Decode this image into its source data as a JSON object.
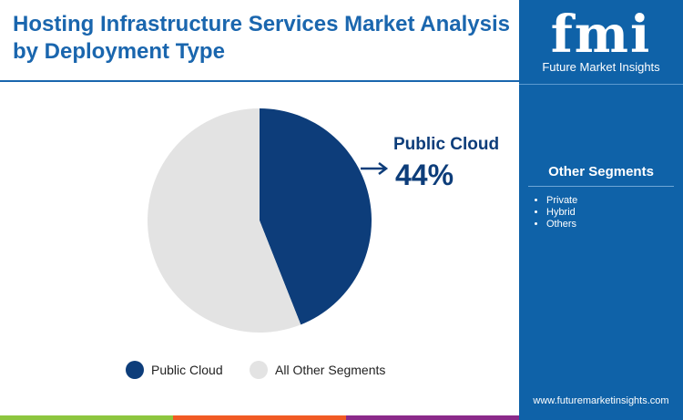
{
  "title": "Hosting Infrastructure Services Market Analysis by Deployment Type",
  "brand": {
    "logo_text": "fmi",
    "name": "Future Market Insights",
    "url": "www.futuremarketinsights.com"
  },
  "side_panel": {
    "title": "Other Segments",
    "items": [
      "Private",
      "Hybrid",
      "Others"
    ]
  },
  "colors": {
    "primary": "#0d3d7a",
    "other": "#e3e3e3",
    "accent": "#1a66ae",
    "green": "#8dc63f",
    "orange": "#f15a24",
    "purple": "#8b2a8a"
  },
  "chart_data": {
    "type": "pie",
    "slices": [
      {
        "label": "Public Cloud",
        "value": 44
      },
      {
        "label": "All Other Segments",
        "value": 56
      }
    ],
    "callout": {
      "label": "Public Cloud",
      "value": "44%"
    },
    "legend": [
      "Public Cloud",
      "All Other Segments"
    ],
    "legend_position": "bottom"
  }
}
